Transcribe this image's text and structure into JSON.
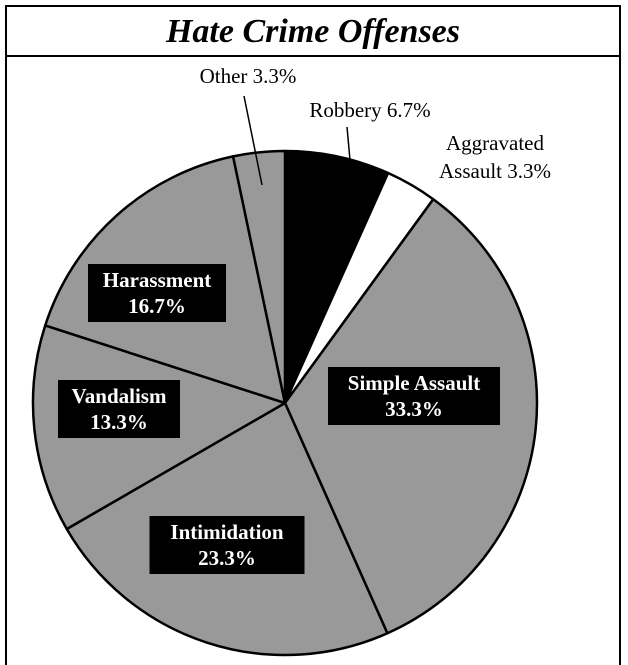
{
  "chart_data": {
    "type": "pie",
    "title": "Hate Crime Offenses",
    "slices": [
      {
        "label": "Robbery",
        "value": 6.7,
        "text": "Robbery 6.7%",
        "color": "#000000",
        "label_style": "outside"
      },
      {
        "label": "Aggravated Assault",
        "value": 3.3,
        "text": [
          "Aggravated",
          "Assault 3.3%"
        ],
        "color": "#ffffff",
        "label_style": "outside"
      },
      {
        "label": "Simple Assault",
        "value": 33.3,
        "text": [
          "Simple Assault",
          "33.3%"
        ],
        "color": "#999999",
        "label_style": "inside"
      },
      {
        "label": "Intimidation",
        "value": 23.3,
        "text": [
          "Intimidation",
          "23.3%"
        ],
        "color": "#999999",
        "label_style": "inside"
      },
      {
        "label": "Vandalism",
        "value": 13.3,
        "text": [
          "Vandalism",
          "13.3%"
        ],
        "color": "#999999",
        "label_style": "inside"
      },
      {
        "label": "Harassment",
        "value": 16.7,
        "text": [
          "Harassment",
          "16.7%"
        ],
        "color": "#999999",
        "label_style": "inside"
      },
      {
        "label": "Other",
        "value": 3.3,
        "text": "Other 3.3%",
        "color": "#999999",
        "label_style": "outside"
      }
    ],
    "start_angle": "12 o'clock",
    "direction": "clockwise",
    "legend": "none"
  }
}
